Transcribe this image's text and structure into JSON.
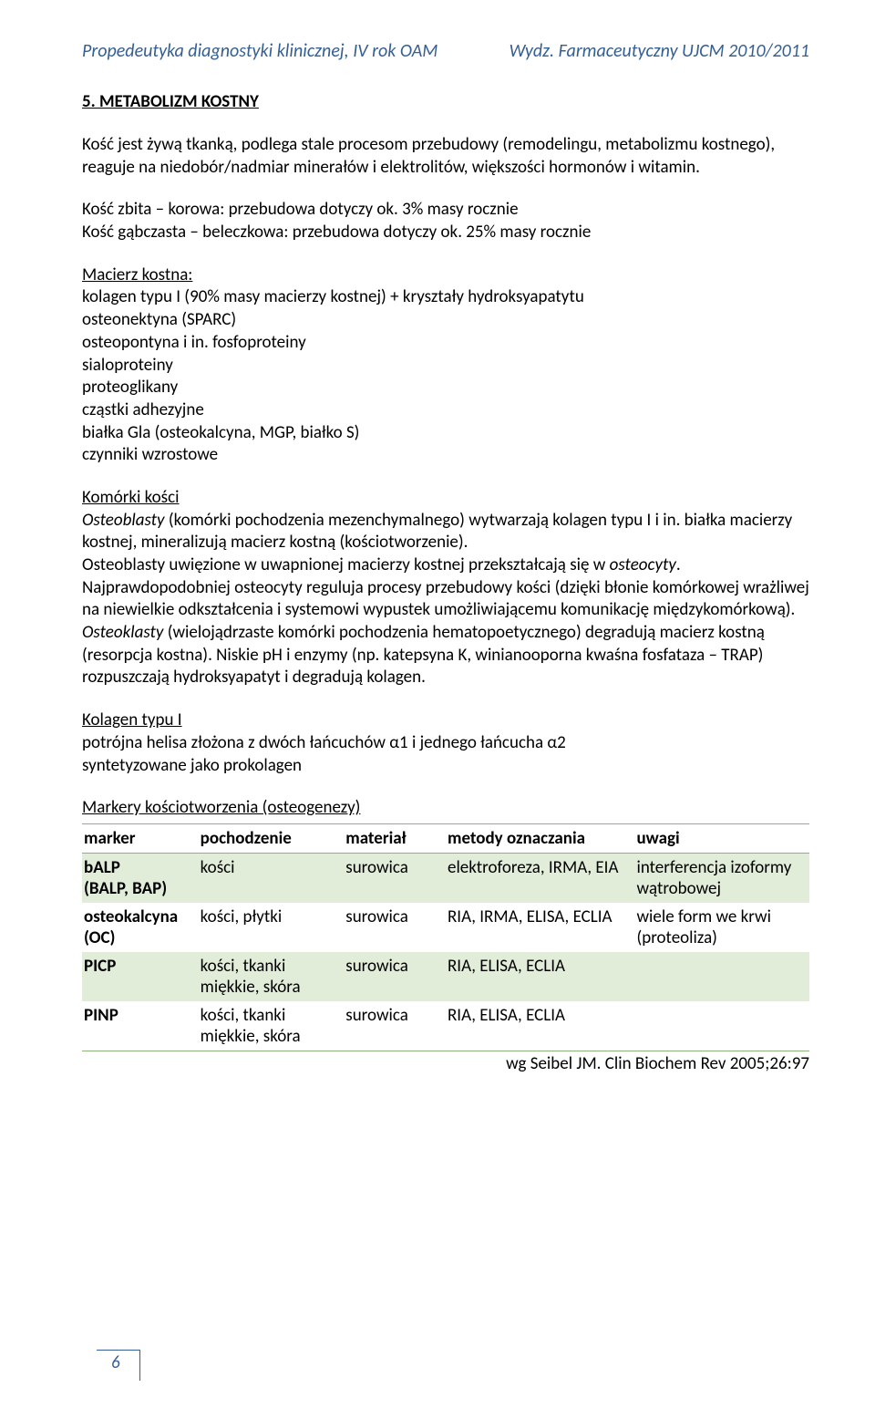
{
  "header": {
    "left": "Propedeutyka diagnostyki klinicznej, IV rok OAM",
    "right": "Wydz. Farmaceutyczny UJCM 2010/2011"
  },
  "title": "5. METABOLIZM KOSTNY",
  "intro": "Kość jest żywą tkanką, podlega stale procesom przebudowy (remodelingu, metabolizmu kostnego), reaguje na niedobór/nadmiar minerałów i elektrolitów, większości hormonów i witamin.",
  "zbita": "Kość zbita – korowa: przebudowa dotyczy ok. 3% masy rocznie",
  "gabczasta": "Kość gąbczasta – beleczkowa: przebudowa dotyczy ok. 25% masy rocznie",
  "macierz": {
    "heading": "Macierz kostna:",
    "lines": [
      "kolagen typu I (90% masy macierzy kostnej) + kryształy hydroksyapatytu",
      "osteonektyna (SPARC)",
      "osteopontyna i in. fosfoproteiny",
      "sialoproteiny",
      "proteoglikany",
      "cząstki adhezyjne",
      "białka Gla (osteokalcyna, MGP, białko S)",
      "czynniki wzrostowe"
    ]
  },
  "komorki": {
    "heading": "Komórki kości",
    "osteoblasty_label": "Osteoblasty",
    "osteoblasty_rest": " (komórki pochodzenia mezenchymalnego) wytwarzają kolagen typu I i in. białka macierzy kostnej, mineralizują macierz kostną (kościotworzenie).",
    "line2a": "Osteoblasty uwięzione w uwapnionej macierzy kostnej przekształcają się w ",
    "line2b": "osteocyty",
    "line2c": ".",
    "line3": "Najprawdopodobniej osteocyty reguluja procesy przebudowy kości (dzięki błonie komórkowej wrażliwej na niewielkie odkształcenia i systemowi wypustek umożliwiającemu komunikację międzykomórkową).",
    "osteoklasty_label": " Osteoklasty",
    "osteoklasty_rest": " (wielojądrzaste komórki pochodzenia hematopoetycznego) degradują macierz kostną (resorpcja kostna). Niskie pH i enzymy (np. katepsyna K, winianooporna kwaśna fosfataza – TRAP) rozpuszczają hydroksyapatyt i degradują kolagen."
  },
  "kolagen": {
    "heading": "Kolagen typu I",
    "line1": "potrójna helisa złożona z dwóch łańcuchów α1 i jednego łańcucha α2",
    "line2": "syntetyzowane jako prokolagen"
  },
  "markery": {
    "heading": "Markery kościotworzenia (osteogenezy)",
    "cols": [
      "marker",
      "pochodzenie",
      "materiał",
      "metody oznaczania",
      "uwagi"
    ],
    "rows": [
      {
        "shaded": true,
        "c": [
          "bALP\n(BALP, BAP)",
          "kości",
          "surowica",
          "elektroforeza, IRMA, EIA",
          "interferencja izoformy wątrobowej"
        ]
      },
      {
        "shaded": false,
        "c": [
          "osteokalcyna\n(OC)",
          "kości, płytki",
          "surowica",
          "RIA, IRMA, ELISA, ECLIA",
          "wiele form we krwi (proteoliza)"
        ]
      },
      {
        "shaded": true,
        "c": [
          "PICP",
          "kości, tkanki miękkie, skóra",
          "surowica",
          "RIA, ELISA, ECLIA",
          ""
        ]
      },
      {
        "shaded": false,
        "c": [
          "PINP",
          "kości, tkanki miękkie, skóra",
          "surowica",
          "RIA, ELISA, ECLIA",
          ""
        ]
      }
    ]
  },
  "citation": "wg Seibel JM. Clin Biochem Rev 2005;26:97",
  "pagenum": "6"
}
